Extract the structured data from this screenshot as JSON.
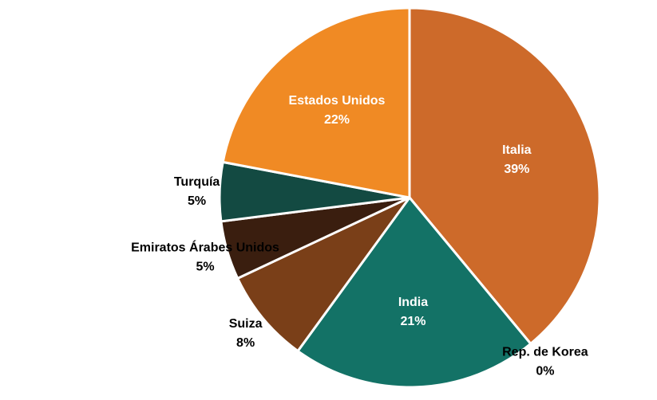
{
  "chart_data": {
    "type": "pie",
    "categories": [
      "Italia",
      "Rep. de Korea",
      "India",
      "Suiza",
      "Emiratos Árabes Unidos",
      "Turquía",
      "Estados Unidos"
    ],
    "values": [
      39,
      0,
      21,
      8,
      5,
      5,
      22
    ],
    "value_labels": [
      "39%",
      "0%",
      "21%",
      "8%",
      "5%",
      "5%",
      "22%"
    ],
    "colors": [
      "#cd6a2a",
      "#a5a5a5",
      "#137266",
      "#7a3f18",
      "#3a1e0f",
      "#134a42",
      "#f08a24"
    ]
  }
}
